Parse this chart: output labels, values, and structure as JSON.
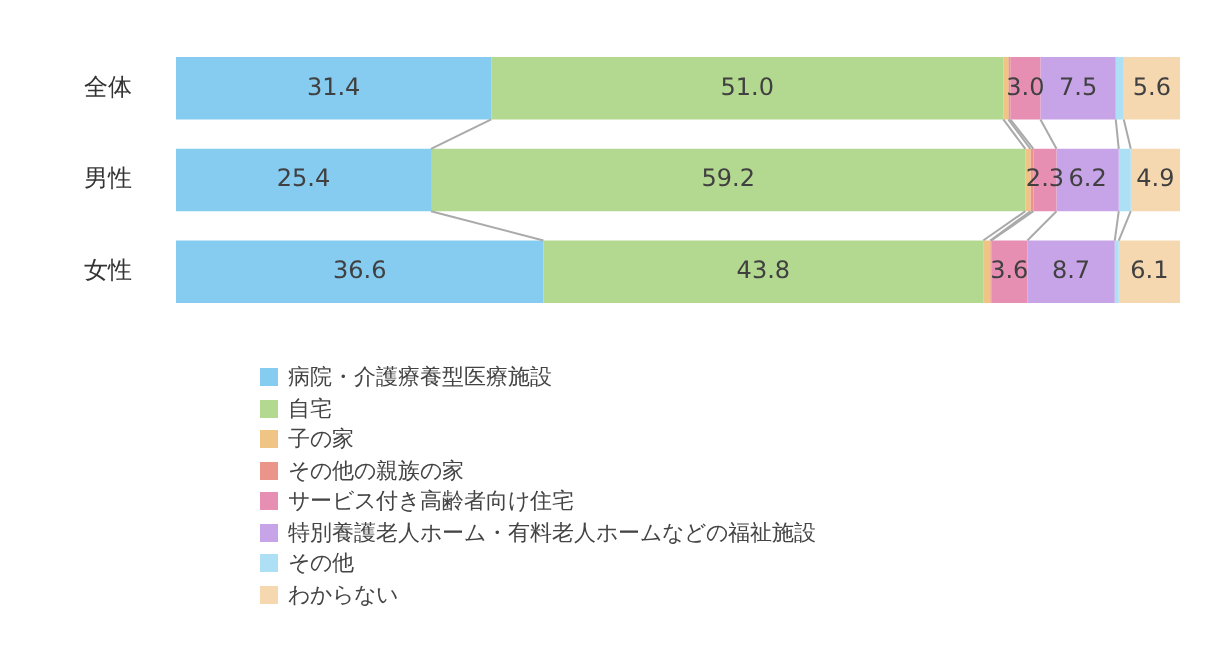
{
  "chart_data": {
    "type": "bar",
    "orientation": "horizontal",
    "stacked": true,
    "categories": [
      "全体",
      "男性",
      "女性"
    ],
    "xlim": [
      0,
      100
    ],
    "tick_labels": "y",
    "grid": false,
    "legend": "bottom left",
    "series": [
      {
        "name": "病院・介護療養型医療施設",
        "color": "#86cbf0",
        "values": [
          31.4,
          25.4,
          36.6
        ],
        "value_labels": [
          "31.4",
          "25.4",
          "36.6"
        ]
      },
      {
        "name": "自宅",
        "color": "#b3d88f",
        "values": [
          51.0,
          59.2,
          43.8
        ],
        "value_labels": [
          "51.0",
          "59.2",
          "43.8"
        ]
      },
      {
        "name": "子の家",
        "color": "#f0c485",
        "values": [
          0.5,
          0.5,
          0.7
        ],
        "value_labels": [
          null,
          null,
          null
        ]
      },
      {
        "name": "その他の親族の家",
        "color": "#ea948a",
        "values": [
          0.2,
          0.3,
          0.1
        ],
        "value_labels": [
          null,
          null,
          null
        ]
      },
      {
        "name": "サービス付き高齢者向け住宅",
        "color": "#e78fb3",
        "values": [
          3.0,
          2.3,
          3.6
        ],
        "value_labels": [
          "3.0",
          "2.3",
          "3.6"
        ]
      },
      {
        "name": "特別養護老人ホーム・有料老人ホームなどの福祉施設",
        "color": "#c7a4e8",
        "values": [
          7.5,
          6.2,
          8.7
        ],
        "value_labels": [
          "7.5",
          "6.2",
          "8.7"
        ]
      },
      {
        "name": "その他",
        "color": "#ade0f5",
        "values": [
          0.8,
          1.2,
          0.4
        ],
        "value_labels": [
          null,
          null,
          null
        ]
      },
      {
        "name": "わからない",
        "color": "#f5d7b0",
        "values": [
          5.6,
          4.9,
          6.1
        ],
        "value_labels": [
          "5.6",
          "4.9",
          "6.1"
        ]
      }
    ]
  }
}
